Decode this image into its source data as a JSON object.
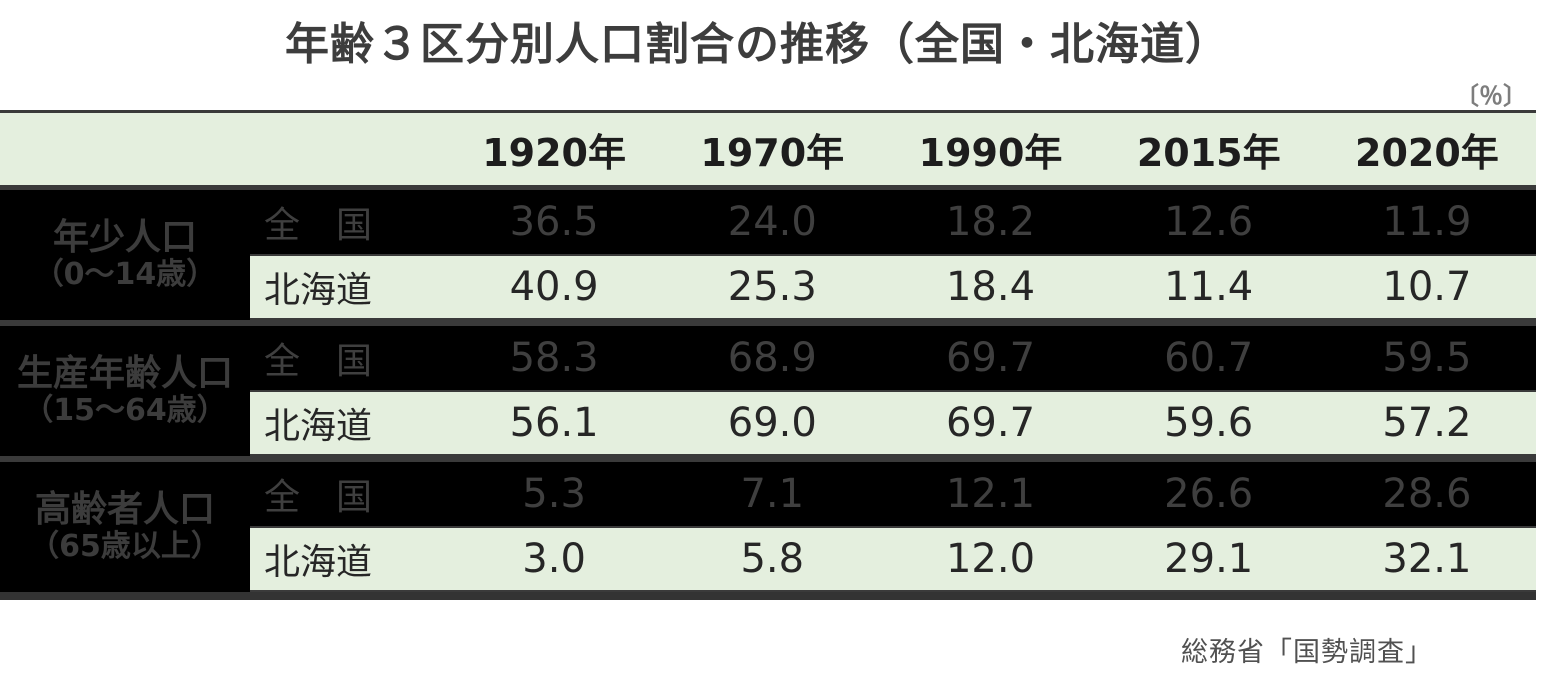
{
  "title": "年齢３区分別人口割合の推移（全国・北海道）",
  "unit_label": "〔％〕",
  "source": "総務省「国勢調査」",
  "colors": {
    "highlight_green": "#e4efde",
    "band_black": "#000000",
    "rule_line": "#3a3a3a",
    "muted_row_text": "#3f3f3f",
    "green_row_text": "#262626"
  },
  "table": {
    "year_headers": [
      "1920年",
      "1970年",
      "1990年",
      "2015年",
      "2020年"
    ],
    "region_labels": {
      "national": "全　国",
      "hokkaido": "北海道"
    },
    "groups": [
      {
        "label_line1": "年少人口",
        "label_line2": "（0～14歳）",
        "national": [
          "36.5",
          "24.0",
          "18.2",
          "12.6",
          "11.9"
        ],
        "hokkaido": [
          "40.9",
          "25.3",
          "18.4",
          "11.4",
          "10.7"
        ]
      },
      {
        "label_line1": "生産年齢人口",
        "label_line2": "（15～64歳）",
        "national": [
          "58.3",
          "68.9",
          "69.7",
          "60.7",
          "59.5"
        ],
        "hokkaido": [
          "56.1",
          "69.0",
          "69.7",
          "59.6",
          "57.2"
        ]
      },
      {
        "label_line1": "高齢者人口",
        "label_line2": "（65歳以上）",
        "national": [
          "5.3",
          "7.1",
          "12.1",
          "26.6",
          "28.6"
        ],
        "hokkaido": [
          "3.0",
          "5.8",
          "12.0",
          "29.1",
          "32.1"
        ]
      }
    ]
  },
  "chart_data": {
    "type": "table",
    "title": "年齢３区分別人口割合の推移（全国・北海道）",
    "unit": "%",
    "columns": [
      "1920年",
      "1970年",
      "1990年",
      "2015年",
      "2020年"
    ],
    "rows": [
      {
        "group": "年少人口（0～14歳）",
        "region": "全国",
        "values": [
          36.5,
          24.0,
          18.2,
          12.6,
          11.9
        ]
      },
      {
        "group": "年少人口（0～14歳）",
        "region": "北海道",
        "values": [
          40.9,
          25.3,
          18.4,
          11.4,
          10.7
        ]
      },
      {
        "group": "生産年齢人口（15～64歳）",
        "region": "全国",
        "values": [
          58.3,
          68.9,
          69.7,
          60.7,
          59.5
        ]
      },
      {
        "group": "生産年齢人口（15～64歳）",
        "region": "北海道",
        "values": [
          56.1,
          69.0,
          69.7,
          59.6,
          57.2
        ]
      },
      {
        "group": "高齢者人口（65歳以上）",
        "region": "全国",
        "values": [
          5.3,
          7.1,
          12.1,
          26.6,
          28.6
        ]
      },
      {
        "group": "高齢者人口（65歳以上）",
        "region": "北海道",
        "values": [
          3.0,
          5.8,
          12.0,
          29.1,
          32.1
        ]
      }
    ],
    "source": "総務省「国勢調査」",
    "layout": {
      "highlighted_rows": "北海道",
      "highlight_color": "#e4efde",
      "header_fill": "#e4efde"
    }
  }
}
